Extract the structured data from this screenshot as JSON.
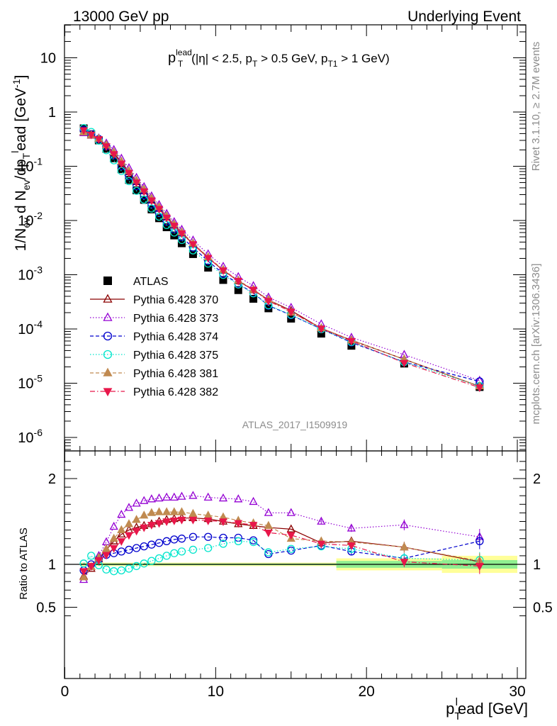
{
  "header": {
    "left": "13000 GeV pp",
    "right": "Underlying Event"
  },
  "side_labels": {
    "rivet": "Rivet 3.1.10, ≥ 2.7M events",
    "mcplots": "mcplots.cern.ch [arXiv:1306.3436]"
  },
  "watermark": "ATLAS_2017_I1509919",
  "chart_data": [
    {
      "type": "scatter",
      "panel": "main",
      "title": {
        "p": "p",
        "sub_T": "T",
        "sup_lead": "lead",
        "cuts_a": "(|η| < 2.5, p",
        "cuts_b": " > 0.5 GeV, p",
        "sub_T1": "T1",
        "cuts_c": " > 1 GeV)"
      },
      "ylabel": {
        "a": "1/N",
        "sub_ev": "ev",
        "b": " d N",
        "c": "/dp",
        "sub_T": "T",
        "sup_l": "l",
        "d": "ead [GeV",
        "sup_m1": "-1",
        "e": "]"
      },
      "yscale": "log",
      "ylim": [
        5e-07,
        40
      ],
      "xlim": [
        0,
        30
      ],
      "x": [
        1.25,
        1.75,
        2.25,
        2.75,
        3.25,
        3.75,
        4.25,
        4.75,
        5.25,
        5.75,
        6.25,
        6.75,
        7.25,
        7.75,
        8.5,
        9.5,
        10.5,
        11.5,
        12.5,
        13.5,
        15.0,
        17.0,
        19.0,
        22.5,
        27.5
      ],
      "series": [
        {
          "name": "ATLAS",
          "marker": "square-filled",
          "color": "#000000",
          "line": "none",
          "values": [
            0.5,
            0.39,
            0.3,
            0.21,
            0.14,
            0.088,
            0.056,
            0.036,
            0.024,
            0.016,
            0.011,
            0.0075,
            0.0053,
            0.0038,
            0.0024,
            0.00135,
            0.0008,
            0.00052,
            0.00036,
            0.00024,
            0.000155,
            8.2e-05,
            4.9e-05,
            2.3e-05,
            8.5e-06
          ]
        },
        {
          "name": "Pythia 6.428 370",
          "marker": "triangle-up-open",
          "color": "#8b0000",
          "line": "solid",
          "ratio": [
            0.86,
            0.95,
            1.06,
            1.17,
            1.27,
            1.35,
            1.4,
            1.43,
            1.45,
            1.47,
            1.5,
            1.52,
            1.53,
            1.54,
            1.54,
            1.53,
            1.5,
            1.47,
            1.45,
            1.43,
            1.41,
            1.25,
            1.27,
            1.2,
            1.03
          ]
        },
        {
          "name": "Pythia 6.428 373",
          "marker": "triangle-up-open",
          "color": "#9400d3",
          "line": "dotted",
          "ratio": [
            0.82,
            0.97,
            1.1,
            1.26,
            1.44,
            1.58,
            1.66,
            1.71,
            1.74,
            1.76,
            1.77,
            1.78,
            1.78,
            1.79,
            1.8,
            1.78,
            1.77,
            1.76,
            1.73,
            1.6,
            1.6,
            1.5,
            1.42,
            1.46,
            1.32
          ]
        },
        {
          "name": "Pythia 6.428 374",
          "marker": "circle-open",
          "color": "#0000cd",
          "line": "dashed",
          "ratio": [
            0.93,
            1.0,
            1.06,
            1.11,
            1.13,
            1.15,
            1.17,
            1.19,
            1.21,
            1.23,
            1.25,
            1.27,
            1.29,
            1.3,
            1.32,
            1.32,
            1.31,
            1.31,
            1.28,
            1.12,
            1.16,
            1.22,
            1.15,
            1.07,
            1.27
          ]
        },
        {
          "name": "Pythia 6.428 375",
          "marker": "circle-open",
          "color": "#00e5cc",
          "line": "dotted",
          "ratio": [
            1.01,
            1.1,
            0.99,
            0.94,
            0.92,
            0.93,
            0.95,
            0.98,
            1.01,
            1.04,
            1.07,
            1.1,
            1.13,
            1.15,
            1.17,
            1.19,
            1.24,
            1.27,
            1.26,
            1.14,
            1.18,
            1.21,
            1.18,
            1.07,
            1.05
          ]
        },
        {
          "name": "Pythia 6.428 381",
          "marker": "triangle-up-filled",
          "color": "#c08a50",
          "line": "dashed",
          "ratio": [
            0.85,
            0.97,
            1.08,
            1.18,
            1.3,
            1.4,
            1.47,
            1.52,
            1.57,
            1.6,
            1.61,
            1.61,
            1.61,
            1.61,
            1.59,
            1.57,
            1.55,
            1.51,
            1.48,
            1.45,
            1.3,
            1.27,
            1.26,
            1.2,
            1.04
          ]
        },
        {
          "name": "Pythia 6.428 382",
          "marker": "triangle-down-filled",
          "color": "#e8174a",
          "line": "dashdot",
          "ratio": [
            0.92,
            0.98,
            1.05,
            1.11,
            1.19,
            1.27,
            1.34,
            1.39,
            1.43,
            1.46,
            1.48,
            1.5,
            1.51,
            1.52,
            1.52,
            1.51,
            1.5,
            1.48,
            1.46,
            1.37,
            1.34,
            1.24,
            1.22,
            1.03,
            0.98
          ]
        }
      ]
    },
    {
      "type": "scatter",
      "panel": "ratio",
      "ylabel": "Ratio to ATLAS",
      "xlabel": {
        "p": "p",
        "sub_T": "T",
        "sup_l": "l",
        "rest": "ead [GeV]"
      },
      "ylim": [
        0.35,
        2.3
      ],
      "xlim": [
        0,
        30
      ],
      "x_ticks": [
        "0",
        "10",
        "20",
        "30"
      ],
      "y_ticks": [
        "0.5",
        "1",
        "2"
      ],
      "reference": 1,
      "uncertainty_bands": [
        {
          "x": [
            1,
            18
          ],
          "stat": 0.01,
          "total": 0.02
        },
        {
          "x": [
            18,
            25
          ],
          "stat": 0.04,
          "total": 0.07
        },
        {
          "x": [
            25,
            30
          ],
          "stat": 0.05,
          "total": 0.1
        }
      ],
      "colors": {
        "band_inner": "#90ee90",
        "band_outer": "#ffff99"
      }
    }
  ]
}
